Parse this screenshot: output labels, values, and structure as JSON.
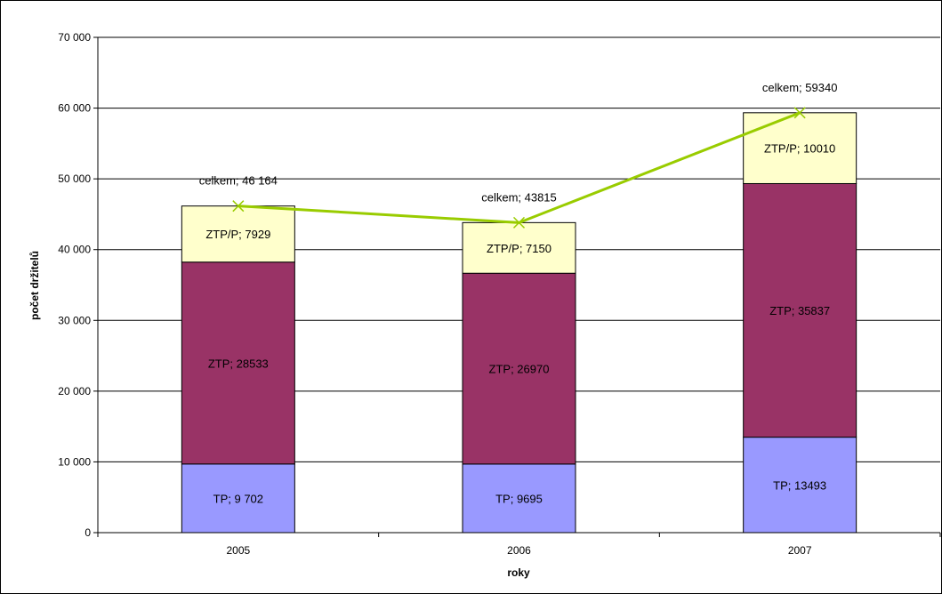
{
  "chart_data": {
    "type": "bar",
    "stacked": true,
    "categories": [
      "2005",
      "2006",
      "2007"
    ],
    "series": [
      {
        "name": "TP",
        "values": [
          9702,
          9695,
          13493
        ],
        "labels": [
          "TP; 9 702",
          "TP; 9695",
          "TP; 13493"
        ],
        "color": "#9999ff"
      },
      {
        "name": "ZTP",
        "values": [
          28533,
          26970,
          35837
        ],
        "labels": [
          "ZTP; 28533",
          "ZTP; 26970",
          "ZTP; 35837"
        ],
        "color": "#993366"
      },
      {
        "name": "ZTP/P",
        "values": [
          7929,
          7150,
          10010
        ],
        "labels": [
          "ZTP/P; 7929",
          "ZTP/P; 7150",
          "ZTP/P; 10010"
        ],
        "color": "#ffffcc"
      }
    ],
    "line": {
      "name": "celkem",
      "values": [
        46164,
        43815,
        59340
      ],
      "labels": [
        "celkem; 46 164",
        "celkem; 43815",
        "celkem; 59340"
      ],
      "color": "#99cc00"
    },
    "ylim": [
      0,
      70000
    ],
    "yticks": [
      0,
      10000,
      20000,
      30000,
      40000,
      50000,
      60000,
      70000
    ],
    "ytick_labels": [
      "0",
      "10 000",
      "20 000",
      "30 000",
      "40 000",
      "50 000",
      "60 000",
      "70 000"
    ],
    "xlabel": "roky",
    "ylabel": "počet držitelů",
    "grid": true,
    "legend": "none"
  }
}
